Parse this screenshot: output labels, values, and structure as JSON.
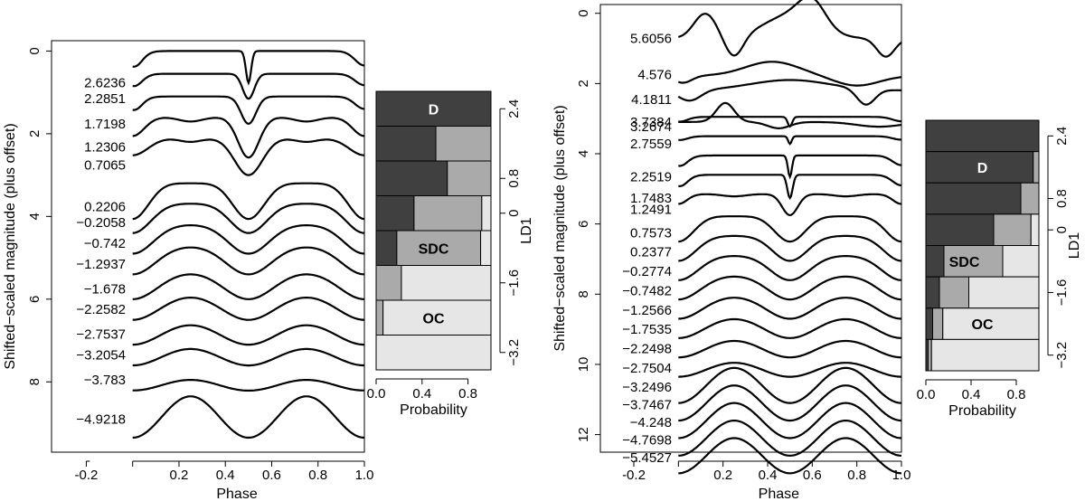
{
  "colors": {
    "D": "#404040",
    "SDC": "#aaaaaa",
    "OC": "#e6e6e6",
    "line": "#000000"
  },
  "panels": [
    {
      "lightcurves": {
        "xlabel": "Phase",
        "ylabel": "Shifted−scaled magnitude (plus offset)",
        "xlim": [
          -0.35,
          1.0
        ],
        "ylim": [
          9.7,
          -0.25
        ],
        "xticks": [
          "-0.2",
          "0.2",
          "0.4",
          "0.6",
          "0.8",
          "1.0"
        ],
        "xtick_values": [
          -0.2,
          0.2,
          0.4,
          0.6,
          0.8,
          1.0
        ],
        "yticks": [
          "0",
          "2",
          "4",
          "6",
          "8"
        ],
        "ytick_values": [
          0,
          2,
          4,
          6,
          8
        ],
        "curves": [
          {
            "label": "2.6236",
            "offset": 0.0,
            "type": "narrow",
            "amp": 1.4,
            "width": 0.011
          },
          {
            "label": "2.2851",
            "offset": 0.55,
            "type": "narrow",
            "amp": 1.1,
            "width": 0.025
          },
          {
            "label": "1.7198",
            "offset": 1.1,
            "type": "narrow",
            "amp": 1.2,
            "width": 0.032
          },
          {
            "label": "1.2306",
            "offset": 1.6,
            "type": "mid",
            "amp": 1.3,
            "width": 0.045
          },
          {
            "label": "0.7065",
            "offset": 2.1,
            "type": "mid",
            "amp": 1.2,
            "width": 0.06
          },
          {
            "label": "0.2206",
            "offset": 3.1,
            "type": "ew",
            "amp": 1.2,
            "width": 0.07
          },
          {
            "label": "−0.2058",
            "offset": 3.6,
            "type": "ew",
            "amp": 1.0,
            "width": 0.08
          },
          {
            "label": "−0.742",
            "offset": 4.1,
            "type": "ew",
            "amp": 1.0,
            "width": 0.09
          },
          {
            "label": "−1.2937",
            "offset": 4.6,
            "type": "ew",
            "amp": 1.0,
            "width": 0.1
          },
          {
            "label": "−1.678",
            "offset": 5.2,
            "type": "ew",
            "amp": 1.0,
            "width": 0.11
          },
          {
            "label": "−2.2582",
            "offset": 5.7,
            "type": "ew",
            "amp": 1.0,
            "width": 0.12
          },
          {
            "label": "−2.7537",
            "offset": 6.3,
            "type": "ew",
            "amp": 1.0,
            "width": 0.13
          },
          {
            "label": "−3.2054",
            "offset": 6.8,
            "type": "ew",
            "amp": 1.0,
            "width": 0.14
          },
          {
            "label": "−3.783",
            "offset": 7.4,
            "type": "ew",
            "amp": 1.0,
            "width": 0.16
          },
          {
            "label": "−4.9218",
            "offset": 8.35,
            "type": "sin",
            "amp": 1.0,
            "width": 0.2
          }
        ]
      },
      "probability": {
        "xlabel": "Probability",
        "ylabel": "LD1",
        "xticks": [
          "0.0",
          "0.4",
          "0.8"
        ],
        "xtick_values": [
          0.0,
          0.4,
          0.8
        ],
        "yticks": [
          "2.4",
          "0.8",
          "0",
          "−1.6",
          "−3.2"
        ],
        "ytick_rows": [
          0,
          2,
          3,
          5,
          7
        ],
        "rows": [
          {
            "D": 1.0,
            "SDC": 0.0,
            "OC": 0.0
          },
          {
            "D": 0.52,
            "SDC": 0.48,
            "OC": 0.0
          },
          {
            "D": 0.62,
            "SDC": 0.38,
            "OC": 0.0
          },
          {
            "D": 0.33,
            "SDC": 0.59,
            "OC": 0.08
          },
          {
            "D": 0.18,
            "SDC": 0.73,
            "OC": 0.09
          },
          {
            "D": 0.0,
            "SDC": 0.22,
            "OC": 0.78
          },
          {
            "D": 0.0,
            "SDC": 0.06,
            "OC": 0.94
          },
          {
            "D": 0.0,
            "SDC": 0.0,
            "OC": 1.0
          }
        ],
        "class_labels": [
          {
            "text": "D",
            "row": 0,
            "x": 0.5,
            "color": "#ffffff"
          },
          {
            "text": "SDC",
            "row": 4,
            "x": 0.5,
            "color": "#000000"
          },
          {
            "text": "OC",
            "row": 6,
            "x": 0.5,
            "color": "#000000"
          }
        ]
      }
    },
    {
      "lightcurves": {
        "xlabel": "Phase",
        "ylabel": "Shifted−scaled magnitude (plus offset)",
        "xlim": [
          -0.35,
          1.0
        ],
        "ylim": [
          12.5,
          -0.25
        ],
        "xticks": [
          "-0.2",
          "0.2",
          "0.4",
          "0.6",
          "0.8",
          "1.0"
        ],
        "xtick_values": [
          -0.2,
          0.2,
          0.4,
          0.6,
          0.8,
          1.0
        ],
        "yticks": [
          "0",
          "2",
          "4",
          "6",
          "8",
          "10",
          "12"
        ],
        "ytick_values": [
          0,
          2,
          4,
          6,
          8,
          10,
          12
        ],
        "curves": [
          {
            "label": "5.6056",
            "offset": 0.0,
            "type": "odd1",
            "amp": 1.3,
            "width": 0.05
          },
          {
            "label": "4.576",
            "offset": 1.3,
            "type": "odd2",
            "amp": 0.8,
            "width": 0.05
          },
          {
            "label": "4.1811",
            "offset": 1.9,
            "type": "odd3",
            "amp": 1.0,
            "width": 0.05
          },
          {
            "label": "3.7384",
            "offset": 2.6,
            "type": "odd4",
            "amp": 0.9,
            "width": 0.05
          },
          {
            "label": "3.2674",
            "offset": 2.95,
            "type": "narrow",
            "amp": 0.5,
            "width": 0.01
          },
          {
            "label": "2.7559",
            "offset": 3.5,
            "type": "narrow",
            "amp": 0.4,
            "width": 0.008
          },
          {
            "label": "2.2519",
            "offset": 4.05,
            "type": "narrow",
            "amp": 1.1,
            "width": 0.009
          },
          {
            "label": "1.7483",
            "offset": 4.6,
            "type": "narrow",
            "amp": 1.2,
            "width": 0.012
          },
          {
            "label": "1.2491",
            "offset": 5.15,
            "type": "mid",
            "amp": 0.8,
            "width": 0.035
          },
          {
            "label": "0.7573",
            "offset": 5.7,
            "type": "ew",
            "amp": 1.0,
            "width": 0.07
          },
          {
            "label": "0.2377",
            "offset": 6.25,
            "type": "ew",
            "amp": 1.0,
            "width": 0.08
          },
          {
            "label": "−0.2774",
            "offset": 6.8,
            "type": "ew",
            "amp": 1.0,
            "width": 0.09
          },
          {
            "label": "−0.7482",
            "offset": 7.35,
            "type": "ew",
            "amp": 1.0,
            "width": 0.1
          },
          {
            "label": "−1.2566",
            "offset": 7.9,
            "type": "ew",
            "amp": 1.0,
            "width": 0.11
          },
          {
            "label": "−1.7535",
            "offset": 8.45,
            "type": "ew",
            "amp": 1.0,
            "width": 0.12
          },
          {
            "label": "−2.2498",
            "offset": 9.0,
            "type": "ew",
            "amp": 1.0,
            "width": 0.13
          },
          {
            "label": "−2.7504",
            "offset": 9.55,
            "type": "ew",
            "amp": 1.0,
            "width": 0.14
          },
          {
            "label": "−3.2496",
            "offset": 10.1,
            "type": "sin",
            "amp": 1.0,
            "width": 0.15
          },
          {
            "label": "−3.7467",
            "offset": 10.6,
            "type": "sin",
            "amp": 1.0,
            "width": 0.16
          },
          {
            "label": "−4.248",
            "offset": 11.1,
            "type": "sin",
            "amp": 1.0,
            "width": 0.17
          },
          {
            "label": "−4.7698",
            "offset": 11.6,
            "type": "sin",
            "amp": 1.0,
            "width": 0.18
          },
          {
            "label": "−5.4527",
            "offset": 12.1,
            "type": "sin",
            "amp": 1.0,
            "width": 0.2
          }
        ]
      },
      "probability": {
        "xlabel": "Probability",
        "ylabel": "LD1",
        "xticks": [
          "0.0",
          "0.4",
          "0.8"
        ],
        "xtick_values": [
          0.0,
          0.4,
          0.8
        ],
        "yticks": [
          "2.4",
          "0.8",
          "0",
          "−1.6",
          "−3.2"
        ],
        "ytick_rows": [
          0,
          2,
          3,
          5,
          7
        ],
        "rows": [
          {
            "D": 1.0,
            "SDC": 0.0,
            "OC": 0.0
          },
          {
            "D": 0.95,
            "SDC": 0.05,
            "OC": 0.0
          },
          {
            "D": 0.84,
            "SDC": 0.16,
            "OC": 0.0
          },
          {
            "D": 0.6,
            "SDC": 0.33,
            "OC": 0.07
          },
          {
            "D": 0.16,
            "SDC": 0.52,
            "OC": 0.32
          },
          {
            "D": 0.12,
            "SDC": 0.26,
            "OC": 0.62
          },
          {
            "D": 0.06,
            "SDC": 0.09,
            "OC": 0.85
          },
          {
            "D": 0.02,
            "SDC": 0.03,
            "OC": 0.95
          }
        ],
        "class_labels": [
          {
            "text": "D",
            "row": 1,
            "x": 0.5,
            "color": "#ffffff"
          },
          {
            "text": "SDC",
            "row": 4,
            "x": 0.34,
            "color": "#000000"
          },
          {
            "text": "OC",
            "row": 6,
            "x": 0.5,
            "color": "#000000"
          }
        ]
      }
    }
  ],
  "chart_data": [
    {
      "type": "line",
      "title": "",
      "xlabel": "Phase",
      "ylabel": "Shifted−scaled magnitude (plus offset)",
      "xlim": [
        -0.35,
        1.0
      ],
      "ylim": [
        9.7,
        -0.25
      ],
      "series_labels": [
        "2.6236",
        "2.2851",
        "1.7198",
        "1.2306",
        "0.7065",
        "0.2206",
        "−0.2058",
        "−0.742",
        "−1.2937",
        "−1.678",
        "−2.2582",
        "−2.7537",
        "−3.2054",
        "−3.783",
        "−4.9218"
      ]
    },
    {
      "type": "bar",
      "orientation": "horizontal-stacked",
      "xlabel": "Probability",
      "ylabel": "LD1",
      "categories": [
        "D",
        "SDC",
        "OC"
      ],
      "ld1_ticks": [
        "2.4",
        "0.8",
        "0",
        "−1.6",
        "−3.2"
      ]
    },
    {
      "type": "line",
      "title": "",
      "xlabel": "Phase",
      "ylabel": "Shifted−scaled magnitude (plus offset)",
      "xlim": [
        -0.35,
        1.0
      ],
      "ylim": [
        12.5,
        -0.25
      ],
      "series_labels": [
        "5.6056",
        "4.576",
        "4.1811",
        "3.7384",
        "3.2674",
        "2.7559",
        "2.2519",
        "1.7483",
        "1.2491",
        "0.7573",
        "0.2377",
        "−0.2774",
        "−0.7482",
        "−1.2566",
        "−1.7535",
        "−2.2498",
        "−2.7504",
        "−3.2496",
        "−3.7467",
        "−4.248",
        "−4.7698",
        "−5.4527"
      ]
    },
    {
      "type": "bar",
      "orientation": "horizontal-stacked",
      "xlabel": "Probability",
      "ylabel": "LD1",
      "categories": [
        "D",
        "SDC",
        "OC"
      ],
      "ld1_ticks": [
        "2.4",
        "0.8",
        "0",
        "−1.6",
        "−3.2"
      ]
    }
  ]
}
